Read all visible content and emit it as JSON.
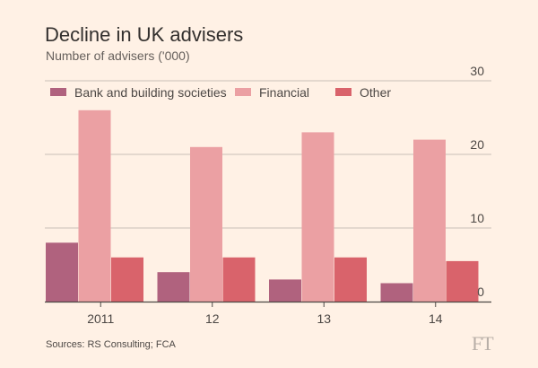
{
  "source": "Sources: RS Consulting; FCA",
  "logo": "FT",
  "colors": {
    "background": "#fff1e5",
    "grid": "#c9c0b8",
    "axis": "#4d4845"
  },
  "chart_data": {
    "type": "bar",
    "title": "Decline in UK advisers",
    "subtitle": "Number of advisers ('000)",
    "categories": [
      "2011",
      "12",
      "13",
      "14"
    ],
    "series": [
      {
        "name": "Bank and building societies",
        "color": "#b0627e",
        "values": [
          8,
          4,
          3,
          2.5
        ]
      },
      {
        "name": "Financial",
        "color": "#eba0a3",
        "values": [
          26,
          21,
          23,
          22
        ]
      },
      {
        "name": "Other",
        "color": "#d9636b",
        "values": [
          6,
          6,
          6,
          5.5
        ]
      }
    ],
    "ylim": [
      0,
      30
    ],
    "yticks": [
      0,
      10,
      20,
      30
    ],
    "y_axis_side": "right",
    "grid": true,
    "legend_position": "top"
  }
}
